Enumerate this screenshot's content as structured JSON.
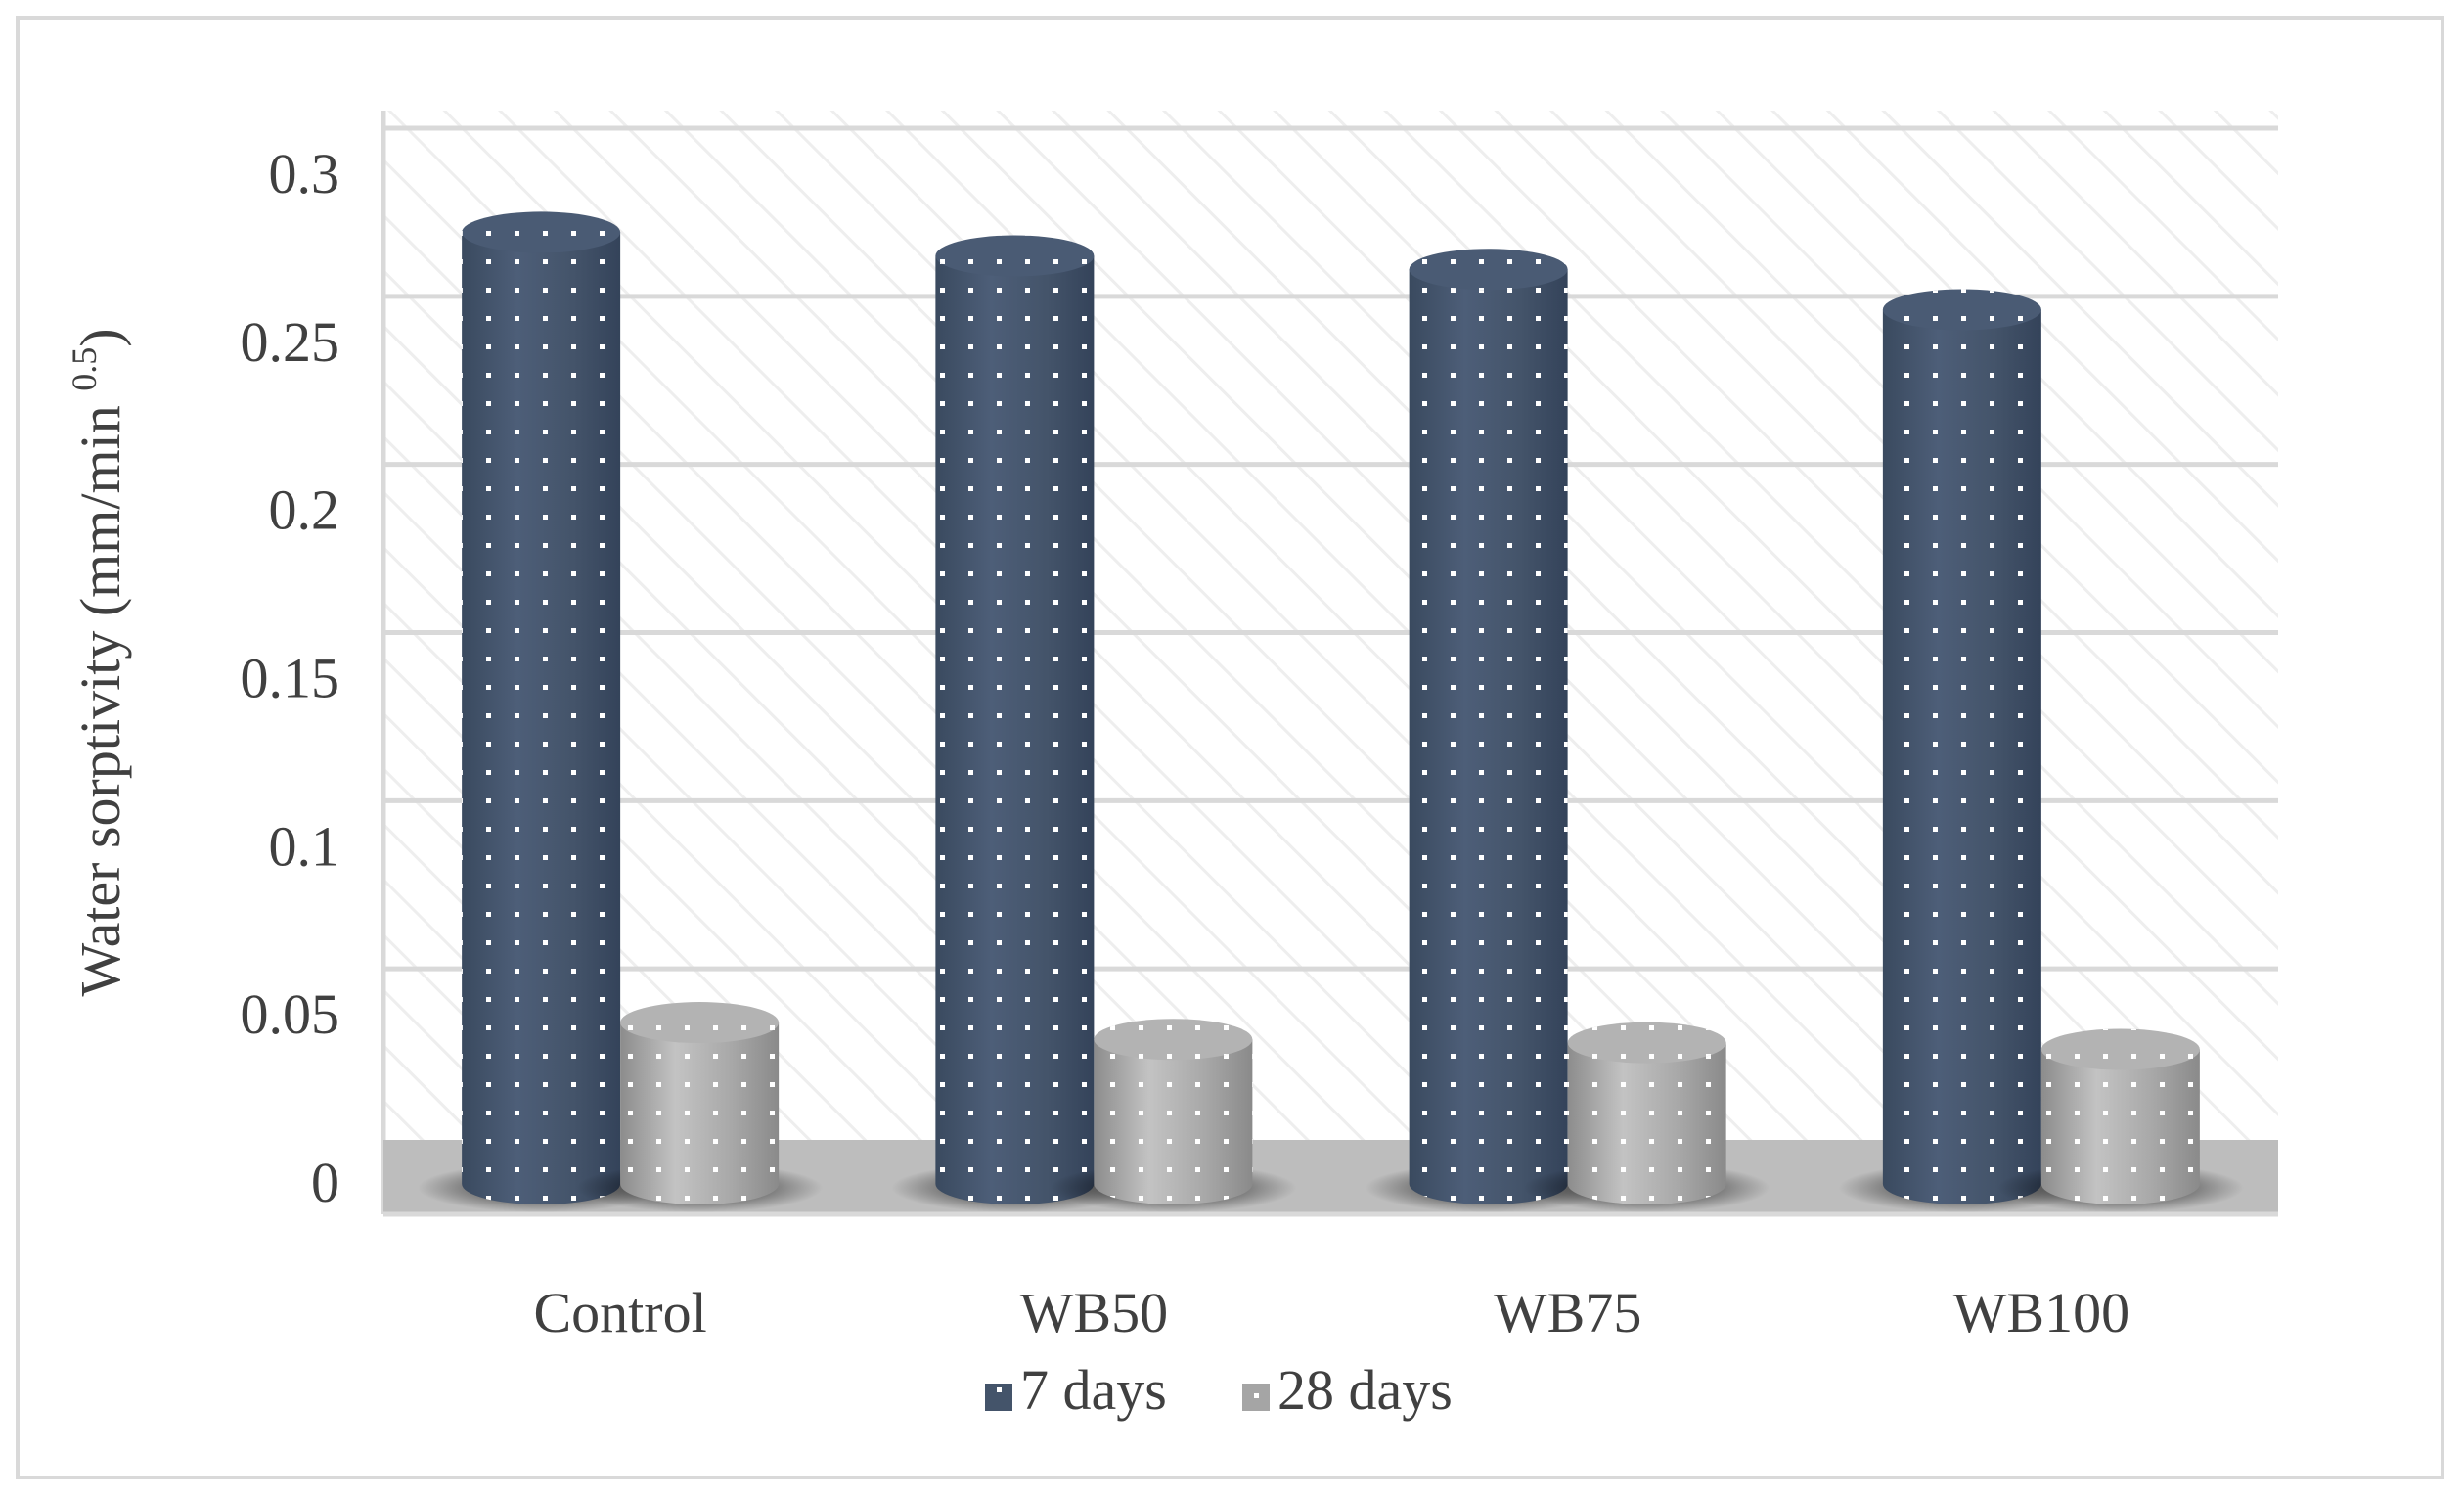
{
  "chart_data": {
    "type": "bar",
    "style": "3d-cylinder",
    "categories": [
      "Control",
      "WB50",
      "WB75",
      "WB100"
    ],
    "series": [
      {
        "name": "7 days",
        "values": [
          0.283,
          0.276,
          0.272,
          0.26
        ],
        "color": "#44546a"
      },
      {
        "name": "28 days",
        "values": [
          0.048,
          0.043,
          0.042,
          0.04
        ],
        "color": "#a5a5a5"
      }
    ],
    "title": "",
    "xlabel": "",
    "ylabel": "Water sorptivity (mm/min ",
    "ylabel_superscript": "0.5",
    "ylabel_close": ")",
    "ylim": [
      0,
      0.3
    ],
    "yticks": [
      "0",
      "0.05",
      "0.1",
      "0.15",
      "0.2",
      "0.25",
      "0.3"
    ],
    "ytick_values": [
      0,
      0.05,
      0.1,
      0.15,
      0.2,
      0.25,
      0.3
    ],
    "grid": true,
    "legend_position": "bottom",
    "colors": {
      "seven_days": "#44546a",
      "twenty_eight_days": "#a5a5a5",
      "grid": "#d9d9d9",
      "floor": "#bfbfbf"
    }
  }
}
